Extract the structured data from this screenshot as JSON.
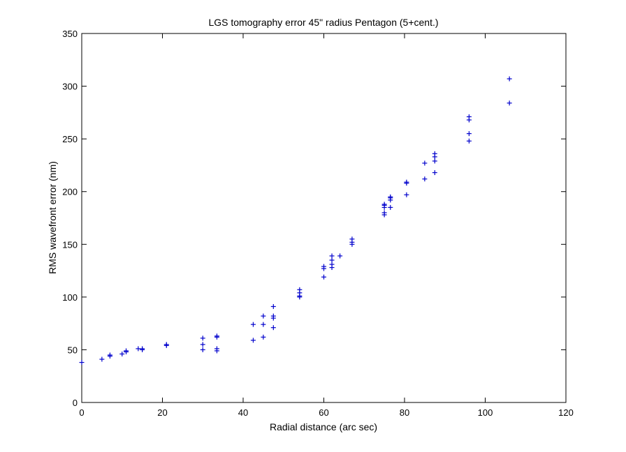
{
  "chart_data": {
    "type": "scatter",
    "title": "LGS tomography error 45\" radius Pentagon (5+cent.)",
    "xlabel": "Radial distance (arc sec)",
    "ylabel": "RMS wavefront error (nm)",
    "xlim": [
      0,
      120
    ],
    "ylim": [
      0,
      350
    ],
    "xticks": [
      0,
      20,
      40,
      60,
      80,
      100,
      120
    ],
    "yticks": [
      0,
      50,
      100,
      150,
      200,
      250,
      300,
      350
    ],
    "grid": false,
    "marker": "+",
    "marker_color": "#0000cc",
    "series": [
      {
        "points": [
          [
            0,
            38
          ],
          [
            5,
            41
          ],
          [
            7,
            44
          ],
          [
            7,
            45
          ],
          [
            10,
            46
          ],
          [
            11,
            48
          ],
          [
            11,
            49
          ],
          [
            14,
            51
          ],
          [
            15,
            50
          ],
          [
            15,
            51
          ],
          [
            21,
            54
          ],
          [
            21,
            55
          ],
          [
            30,
            50
          ],
          [
            30,
            55
          ],
          [
            30,
            61
          ],
          [
            33.5,
            49
          ],
          [
            33.5,
            51
          ],
          [
            33.5,
            62
          ],
          [
            33.5,
            63
          ],
          [
            42.5,
            59
          ],
          [
            42.5,
            74
          ],
          [
            45,
            62
          ],
          [
            45,
            74
          ],
          [
            45,
            82
          ],
          [
            47.5,
            71
          ],
          [
            47.5,
            80
          ],
          [
            47.5,
            82
          ],
          [
            47.5,
            91
          ],
          [
            54,
            100
          ],
          [
            54,
            101
          ],
          [
            54,
            104
          ],
          [
            54,
            107
          ],
          [
            60,
            119
          ],
          [
            60,
            127
          ],
          [
            60,
            129
          ],
          [
            62,
            128
          ],
          [
            62,
            131
          ],
          [
            62,
            135
          ],
          [
            62,
            139
          ],
          [
            64,
            139
          ],
          [
            67,
            150
          ],
          [
            67,
            152
          ],
          [
            67,
            155
          ],
          [
            75,
            178
          ],
          [
            75,
            180
          ],
          [
            75,
            185
          ],
          [
            75,
            187
          ],
          [
            75,
            188
          ],
          [
            76.5,
            185
          ],
          [
            76.5,
            192
          ],
          [
            76.5,
            194
          ],
          [
            76.5,
            195
          ],
          [
            80.5,
            197
          ],
          [
            80.5,
            208
          ],
          [
            80.5,
            209
          ],
          [
            85,
            212
          ],
          [
            85,
            227
          ],
          [
            87.5,
            218
          ],
          [
            87.5,
            229
          ],
          [
            87.5,
            233
          ],
          [
            87.5,
            236
          ],
          [
            96,
            248
          ],
          [
            96,
            255
          ],
          [
            96,
            268
          ],
          [
            96,
            271
          ],
          [
            106,
            284
          ],
          [
            106,
            307
          ]
        ]
      }
    ]
  }
}
